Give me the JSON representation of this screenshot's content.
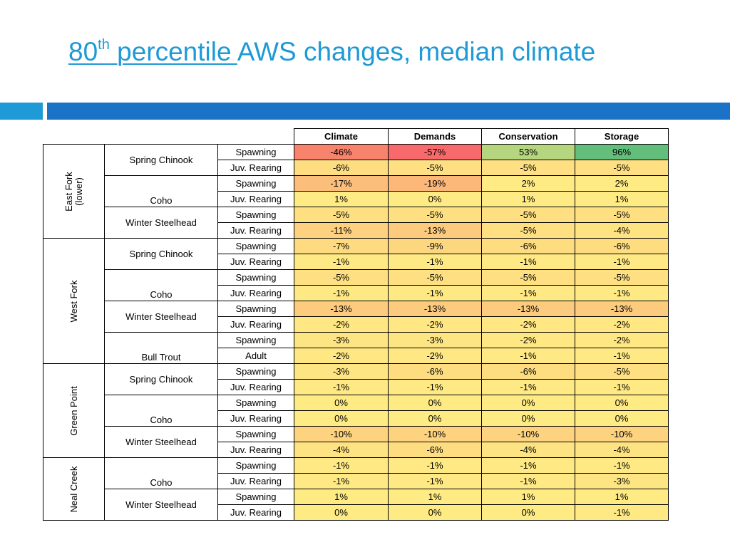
{
  "title": {
    "link_text": "80",
    "sup": "th",
    "link_rest": " percentile ",
    "rest": "AWS changes, median climate"
  },
  "colors": {
    "title": "#1e9ad6",
    "bar_light": "#1e9ad6",
    "bar_dark": "#1a73c7"
  },
  "columns": [
    "Climate",
    "Demands",
    "Conservation",
    "Storage"
  ],
  "locations": [
    {
      "name": [
        "East Fork",
        "(lower)"
      ],
      "species": [
        {
          "name": "Spring Chinook",
          "align": "middle",
          "rows": [
            {
              "stage": "Spawning",
              "values": [
                "-46%",
                "-57%",
                "53%",
                "96%"
              ],
              "colors": [
                "#f8836d",
                "#f8696b",
                "#b5d67e",
                "#63be7b"
              ]
            },
            {
              "stage": "Juv. Rearing",
              "values": [
                "-6%",
                "-5%",
                "-5%",
                "-5%"
              ],
              "colors": [
                "#fedd81",
                "#fee082",
                "#fee082",
                "#fee082"
              ]
            }
          ]
        },
        {
          "name": "Coho",
          "align": "bottom",
          "rows": [
            {
              "stage": "Spawning",
              "values": [
                "-17%",
                "-19%",
                "2%",
                "2%"
              ],
              "colors": [
                "#fcbf7b",
                "#fcb879",
                "#ffeb84",
                "#ffeb84"
              ]
            },
            {
              "stage": "Juv. Rearing",
              "values": [
                "1%",
                "0%",
                "1%",
                "1%"
              ],
              "colors": [
                "#ffeb84",
                "#ffeb84",
                "#ffeb84",
                "#ffeb84"
              ]
            }
          ]
        },
        {
          "name": "Winter Steelhead",
          "align": "middle",
          "rows": [
            {
              "stage": "Spawning",
              "values": [
                "-5%",
                "-5%",
                "-5%",
                "-5%"
              ],
              "colors": [
                "#fee082",
                "#fee082",
                "#fee082",
                "#fee082"
              ]
            },
            {
              "stage": "Juv. Rearing",
              "values": [
                "-11%",
                "-13%",
                "-5%",
                "-4%"
              ],
              "colors": [
                "#fdd17f",
                "#fdcb7e",
                "#fee082",
                "#fee383"
              ]
            }
          ]
        }
      ]
    },
    {
      "name": [
        "West Fork"
      ],
      "species": [
        {
          "name": "Spring Chinook",
          "align": "middle",
          "rows": [
            {
              "stage": "Spawning",
              "values": [
                "-7%",
                "-9%",
                "-6%",
                "-6%"
              ],
              "colors": [
                "#feda80",
                "#fdd680",
                "#fedd81",
                "#fedd81"
              ]
            },
            {
              "stage": "Juv. Rearing",
              "values": [
                "-1%",
                "-1%",
                "-1%",
                "-1%"
              ],
              "colors": [
                "#ffe984",
                "#ffe984",
                "#ffe984",
                "#ffe984"
              ]
            }
          ]
        },
        {
          "name": "Coho",
          "align": "bottom",
          "rows": [
            {
              "stage": "Spawning",
              "values": [
                "-5%",
                "-5%",
                "-5%",
                "-5%"
              ],
              "colors": [
                "#fee082",
                "#fee082",
                "#fee082",
                "#fee082"
              ]
            },
            {
              "stage": "Juv. Rearing",
              "values": [
                "-1%",
                "-1%",
                "-1%",
                "-1%"
              ],
              "colors": [
                "#ffe984",
                "#ffe984",
                "#ffe984",
                "#ffe984"
              ]
            }
          ]
        },
        {
          "name": "Winter Steelhead",
          "align": "middle",
          "rows": [
            {
              "stage": "Spawning",
              "values": [
                "-13%",
                "-13%",
                "-13%",
                "-13%"
              ],
              "colors": [
                "#fdcb7e",
                "#fdcb7e",
                "#fdcb7e",
                "#fdcb7e"
              ]
            },
            {
              "stage": "Juv. Rearing",
              "values": [
                "-2%",
                "-2%",
                "-2%",
                "-2%"
              ],
              "colors": [
                "#ffe783",
                "#ffe783",
                "#ffe783",
                "#ffe783"
              ]
            }
          ]
        },
        {
          "name": "Bull Trout",
          "align": "bottom",
          "rows": [
            {
              "stage": "Spawning",
              "values": [
                "-3%",
                "-3%",
                "-2%",
                "-2%"
              ],
              "colors": [
                "#fee583",
                "#fee583",
                "#ffe783",
                "#ffe783"
              ]
            },
            {
              "stage": "Adult",
              "values": [
                "-2%",
                "-2%",
                "-1%",
                "-1%"
              ],
              "colors": [
                "#ffe783",
                "#ffe783",
                "#ffe984",
                "#ffe984"
              ]
            }
          ]
        }
      ]
    },
    {
      "name": [
        "Green Point"
      ],
      "species": [
        {
          "name": "Spring Chinook",
          "align": "middle",
          "rows": [
            {
              "stage": "Spawning",
              "values": [
                "-3%",
                "-6%",
                "-6%",
                "-5%"
              ],
              "colors": [
                "#fee583",
                "#fedd81",
                "#fedd81",
                "#fee082"
              ]
            },
            {
              "stage": "Juv. Rearing",
              "values": [
                "-1%",
                "-1%",
                "-1%",
                "-1%"
              ],
              "colors": [
                "#ffe984",
                "#ffe984",
                "#ffe984",
                "#ffe984"
              ]
            }
          ]
        },
        {
          "name": "Coho",
          "align": "bottom",
          "rows": [
            {
              "stage": "Spawning",
              "values": [
                "0%",
                "0%",
                "0%",
                "0%"
              ],
              "colors": [
                "#ffeb84",
                "#ffeb84",
                "#ffeb84",
                "#ffeb84"
              ]
            },
            {
              "stage": "Juv. Rearing",
              "values": [
                "0%",
                "0%",
                "0%",
                "0%"
              ],
              "colors": [
                "#ffeb84",
                "#ffeb84",
                "#ffeb84",
                "#ffeb84"
              ]
            }
          ]
        },
        {
          "name": "Winter Steelhead",
          "align": "middle",
          "rows": [
            {
              "stage": "Spawning",
              "values": [
                "-10%",
                "-10%",
                "-10%",
                "-10%"
              ],
              "colors": [
                "#fdd37f",
                "#fdd37f",
                "#fdd37f",
                "#fdd37f"
              ]
            },
            {
              "stage": "Juv. Rearing",
              "values": [
                "-4%",
                "-6%",
                "-4%",
                "-4%"
              ],
              "colors": [
                "#fee383",
                "#fedd81",
                "#fee383",
                "#fee383"
              ]
            }
          ]
        }
      ]
    },
    {
      "name": [
        "Neal Creek"
      ],
      "species": [
        {
          "name": "Coho",
          "align": "bottom",
          "rows": [
            {
              "stage": "Spawning",
              "values": [
                "-1%",
                "-1%",
                "-1%",
                "-1%"
              ],
              "colors": [
                "#ffe984",
                "#ffe984",
                "#ffe984",
                "#ffe984"
              ]
            },
            {
              "stage": "Juv. Rearing",
              "values": [
                "-1%",
                "-1%",
                "-1%",
                "-3%"
              ],
              "colors": [
                "#ffe984",
                "#ffe984",
                "#ffe984",
                "#fee583"
              ]
            }
          ]
        },
        {
          "name": "Winter Steelhead",
          "align": "middle",
          "rows": [
            {
              "stage": "Spawning",
              "values": [
                "1%",
                "1%",
                "1%",
                "1%"
              ],
              "colors": [
                "#ffeb84",
                "#ffeb84",
                "#ffeb84",
                "#ffeb84"
              ]
            },
            {
              "stage": "Juv. Rearing",
              "values": [
                "0%",
                "0%",
                "0%",
                "-1%"
              ],
              "colors": [
                "#ffeb84",
                "#ffeb84",
                "#ffeb84",
                "#ffe984"
              ]
            }
          ]
        }
      ]
    }
  ]
}
